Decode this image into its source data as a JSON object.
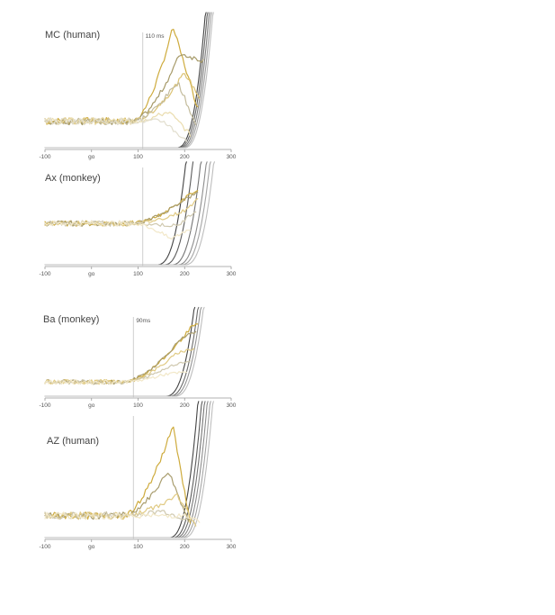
{
  "chart_data": [
    {
      "type": "line",
      "title": "MC (human)",
      "x_ticks": [
        "-100",
        "go",
        "100",
        "200",
        "300"
      ],
      "xlim": [
        -100,
        300
      ],
      "marker": {
        "x": 110,
        "label": "110 ms"
      },
      "colors": {
        "early": "#c9a227",
        "late": "#222222"
      },
      "gold_peaks": [
        {
          "peak_x": 175,
          "peak_y": 1.0,
          "end_x": 230,
          "end_y": 0.3
        },
        {
          "peak_x": 190,
          "peak_y": 0.78,
          "end_x": 240,
          "end_y": 0.72
        },
        {
          "peak_x": 200,
          "peak_y": 0.62,
          "end_x": 235,
          "end_y": 0.4
        },
        {
          "peak_x": 185,
          "peak_y": 0.55,
          "end_x": 225,
          "end_y": 0.18
        },
        {
          "peak_x": 165,
          "peak_y": 0.3,
          "end_x": 215,
          "end_y": 0.1
        },
        {
          "peak_x": 155,
          "peak_y": 0.22,
          "end_x": 205,
          "end_y": 0.05
        }
      ],
      "dark_onsets": [
        242,
        246,
        250,
        254,
        258
      ],
      "baseline": 0.22
    },
    {
      "type": "line",
      "title": "Ax (monkey)",
      "x_ticks": [
        "-100",
        "go",
        "100",
        "200",
        "300"
      ],
      "xlim": [
        -100,
        300
      ],
      "marker": {
        "x": 110,
        "label": ""
      },
      "colors": {
        "early": "#c9a227",
        "late": "#222222"
      },
      "gold_peaks": [
        {
          "peak_x": 215,
          "peak_y": 0.78,
          "end_x": 230,
          "end_y": 0.8
        },
        {
          "peak_x": 195,
          "peak_y": 0.7,
          "end_x": 228,
          "end_y": 0.78
        },
        {
          "peak_x": 205,
          "peak_y": 0.6,
          "end_x": 230,
          "end_y": 0.74
        },
        {
          "peak_x": 185,
          "peak_y": 0.42,
          "end_x": 225,
          "end_y": 0.6
        },
        {
          "peak_x": 170,
          "peak_y": 0.28,
          "end_x": 215,
          "end_y": 0.4
        }
      ],
      "dark_onsets": [
        200,
        215,
        232,
        244,
        252,
        260
      ],
      "baseline": 0.45
    },
    {
      "type": "line",
      "title": "Ba (monkey)",
      "x_ticks": [
        "-100",
        "go",
        "100",
        "200",
        "300"
      ],
      "xlim": [
        -100,
        300
      ],
      "marker": {
        "x": 90,
        "label": "90ms"
      },
      "colors": {
        "early": "#c9a227",
        "late": "#222222"
      },
      "gold_peaks": [
        {
          "peak_x": 215,
          "peak_y": 0.88,
          "end_x": 230,
          "end_y": 0.9
        },
        {
          "peak_x": 195,
          "peak_y": 0.75,
          "end_x": 225,
          "end_y": 0.8
        },
        {
          "peak_x": 185,
          "peak_y": 0.55,
          "end_x": 220,
          "end_y": 0.6
        },
        {
          "peak_x": 175,
          "peak_y": 0.4,
          "end_x": 215,
          "end_y": 0.45
        },
        {
          "peak_x": 160,
          "peak_y": 0.28,
          "end_x": 205,
          "end_y": 0.3
        }
      ],
      "dark_onsets": [
        218,
        226,
        232,
        238
      ],
      "baseline": 0.18
    },
    {
      "type": "line",
      "title": "AZ (human)",
      "x_ticks": [
        "-100",
        "go",
        "100",
        "200",
        "300"
      ],
      "xlim": [
        -100,
        300
      ],
      "marker": {
        "x": 90,
        "label": ""
      },
      "colors": {
        "early": "#c9a227",
        "late": "#222222"
      },
      "gold_peaks": [
        {
          "peak_x": 175,
          "peak_y": 0.92,
          "end_x": 215,
          "end_y": 0.05
        },
        {
          "peak_x": 165,
          "peak_y": 0.55,
          "end_x": 210,
          "end_y": 0.12
        },
        {
          "peak_x": 185,
          "peak_y": 0.35,
          "end_x": 225,
          "end_y": 0.08
        },
        {
          "peak_x": 150,
          "peak_y": 0.22,
          "end_x": 205,
          "end_y": 0.15
        },
        {
          "peak_x": 200,
          "peak_y": 0.18,
          "end_x": 235,
          "end_y": 0.12
        }
      ],
      "dark_onsets": [
        226,
        234,
        240,
        246,
        252,
        258
      ],
      "baseline": 0.18
    }
  ]
}
